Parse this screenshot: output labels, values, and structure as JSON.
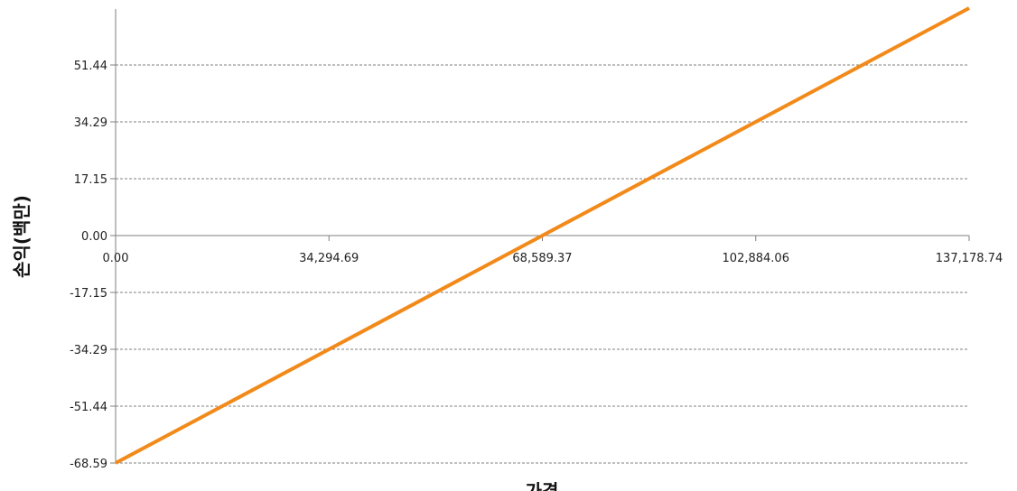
{
  "chart_data": {
    "type": "line",
    "xlabel": "가격",
    "ylabel": "손익(백만)",
    "x_tick_labels": [
      "0.00",
      "34,294.69",
      "68,589.37",
      "102,884.06",
      "137,178.74"
    ],
    "y_tick_labels": [
      "51.44",
      "34.29",
      "17.15",
      "0.00",
      "-17.15",
      "-34.29",
      "-51.44",
      "-68.59"
    ],
    "xlim": [
      0,
      137178.74
    ],
    "ylim": [
      -68.59,
      68.59
    ],
    "grid": true,
    "series": [
      {
        "x": [
          0,
          137178.74
        ],
        "y": [
          -68.59,
          68.59
        ],
        "color": "#F28A1A"
      }
    ]
  }
}
